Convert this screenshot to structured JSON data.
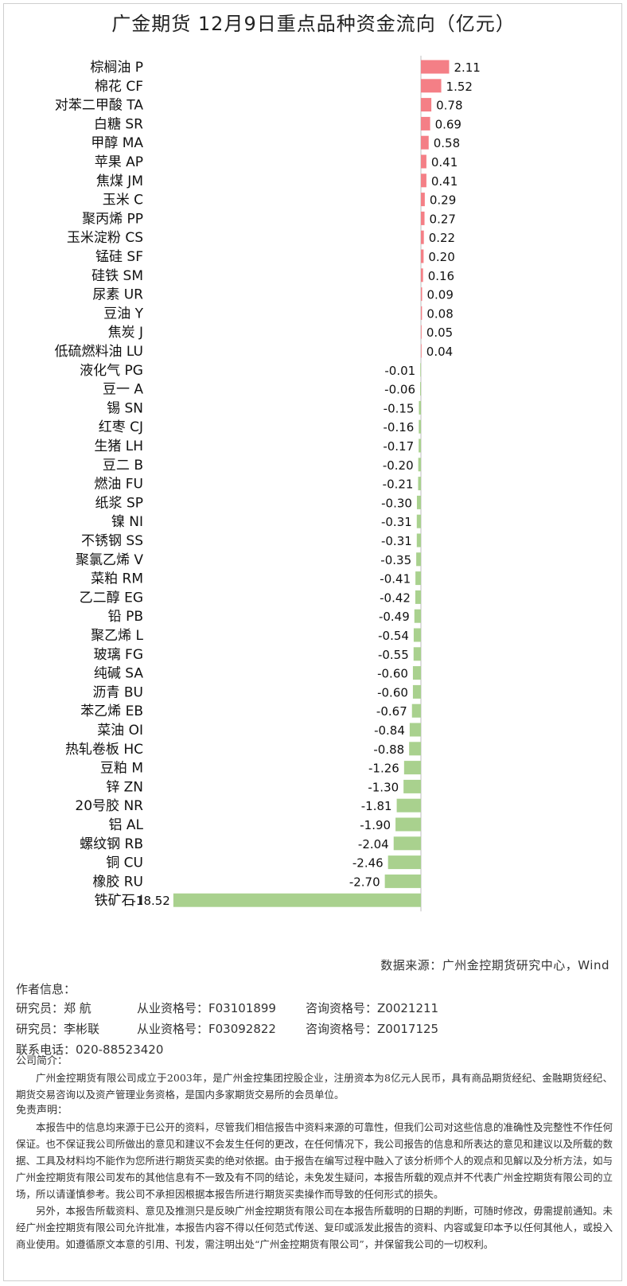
{
  "chart_data": {
    "type": "bar",
    "orientation": "horizontal",
    "title": "广金期货 12月9日重点品种资金流向（亿元）",
    "categories": [
      "棕榈油 P",
      "棉花 CF",
      "对苯二甲酸 TA",
      "白糖 SR",
      "甲醇 MA",
      "苹果 AP",
      "焦煤 JM",
      "玉米 C",
      "聚丙烯 PP",
      "玉米淀粉 CS",
      "锰硅 SF",
      "硅铁 SM",
      "尿素 UR",
      "豆油 Y",
      "焦炭 J",
      "低硫燃料油 LU",
      "液化气 PG",
      "豆一 A",
      "锡 SN",
      "红枣 CJ",
      "生猪 LH",
      "豆二 B",
      "燃油 FU",
      "纸浆 SP",
      "镍 NI",
      "不锈钢 SS",
      "聚氯乙烯 V",
      "菜粕 RM",
      "乙二醇 EG",
      "铅 PB",
      "聚乙烯 L",
      "玻璃 FG",
      "纯碱 SA",
      "沥青 BU",
      "苯乙烯 EB",
      "菜油 OI",
      "热轧卷板 HC",
      "豆粕 M",
      "锌 ZN",
      "20号胶 NR",
      "铝 AL",
      "螺纹钢 RB",
      "铜 CU",
      "橡胶 RU",
      "铁矿石 I"
    ],
    "values": [
      2.11,
      1.52,
      0.78,
      0.69,
      0.58,
      0.41,
      0.41,
      0.29,
      0.27,
      0.22,
      0.2,
      0.16,
      0.09,
      0.08,
      0.05,
      0.04,
      -0.01,
      -0.06,
      -0.15,
      -0.16,
      -0.17,
      -0.2,
      -0.21,
      -0.3,
      -0.31,
      -0.31,
      -0.35,
      -0.41,
      -0.42,
      -0.49,
      -0.54,
      -0.55,
      -0.6,
      -0.6,
      -0.67,
      -0.84,
      -0.88,
      -1.26,
      -1.3,
      -1.81,
      -1.9,
      -2.04,
      -2.46,
      -2.7,
      -18.52
    ],
    "value_labels": [
      "2.11",
      "1.52",
      "0.78",
      "0.69",
      "0.58",
      "0.41",
      "0.41",
      "0.29",
      "0.27",
      "0.22",
      "0.20",
      "0.16",
      "0.09",
      "0.08",
      "0.05",
      "0.04",
      "-0.01",
      "-0.06",
      "-0.15",
      "-0.16",
      "-0.17",
      "-0.20",
      "-0.21",
      "-0.30",
      "-0.31",
      "-0.31",
      "-0.35",
      "-0.41",
      "-0.42",
      "-0.49",
      "-0.54",
      "-0.55",
      "-0.60",
      "-0.60",
      "-0.67",
      "-0.84",
      "-0.88",
      "-1.26",
      "-1.30",
      "-1.81",
      "-1.90",
      "-2.04",
      "-2.46",
      "-2.70",
      "-18.52"
    ],
    "positive_color": "#f47f86",
    "negative_color": "#a9d18e",
    "axis_color": "#bfbfbf",
    "grid": false,
    "legend": "none"
  },
  "source_note": "数据来源：广州金控期货研究中心，Wind",
  "authors": {
    "heading": "作者信息：",
    "rows": [
      {
        "name": "研究员：郑 航",
        "cert": "从业资格号：F03101899",
        "consult": "咨询资格号：Z0021211"
      },
      {
        "name": "研究员：李彬联",
        "cert": "从业资格号：F03092822",
        "consult": "咨询资格号：Z0017125"
      }
    ],
    "contact": "联系电话：020-88523420"
  },
  "disclaimer": {
    "company_heading": "公司简介：",
    "company_text": "广州金控期货有限公司成立于2003年，是广州金控集团控股企业，注册资本为8亿元人民币，具有商品期货经纪、金融期货经纪、期货交易咨询以及资产管理业务资格，是国内多家期货交易所的会员单位。",
    "disclaimer_heading": "免责声明：",
    "disclaimer_text_1": "本报告中的信息均来源于已公开的资料，尽管我们相信报告中资料来源的可靠性，但我们公司对这些信息的准确性及完整性不作任何保证。也不保证我公司所做出的意见和建议不会发生任何的更改，在任何情况下，我公司报告的信息和所表达的意见和建议以及所载的数据、工具及材料均不能作为您所进行期货买卖的绝对依据。由于报告在编写过程中融入了该分析师个人的观点和见解以及分析方法，如与广州金控期货有限公司发布的其他信息有不一致及有不同的结论，未免发生疑问，本报告所载的观点并不代表广州金控期货有限公司的立场，所以请谨慎参考。我公司不承担因根据本报告所进行期货买卖操作而导致的任何形式的损失。",
    "disclaimer_text_2": "另外，本报告所载资料、意见及推测只是反映广州金控期货有限公司在本报告所载明的日期的判断，可随时修改，毋需提前通知。未经广州金控期货有限公司允许批准，本报告内容不得以任何范式传送、复印或派发此报告的资料、内容或复印本予以任何其他人，或投入商业使用。如遵循原文本意的引用、刊发，需注明出处“广州金控期货有限公司”，并保留我公司的一切权利。"
  }
}
